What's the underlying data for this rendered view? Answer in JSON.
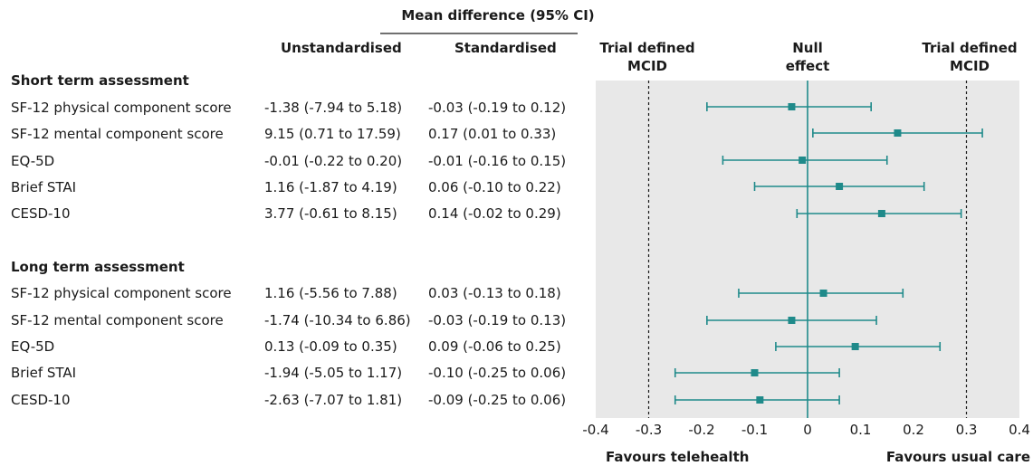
{
  "header": {
    "group_title": "Mean difference (95% CI)",
    "col_unstd": "Unstandardised",
    "col_std": "Standardised",
    "left_mcid_line1": "Trial defined",
    "left_mcid_line2": "MCID",
    "null_line1": "Null",
    "null_line2": "effect",
    "right_mcid_line1": "Trial defined",
    "right_mcid_line2": "MCID"
  },
  "sections": {
    "short": {
      "title": "Short term assessment",
      "rows": [
        {
          "label": "SF-12 physical component score",
          "unstd": "-1.38 (-7.94 to 5.18)",
          "std": "-0.03 (-0.19 to 0.12)"
        },
        {
          "label": "SF-12 mental component score",
          "unstd": "9.15 (0.71 to 17.59)",
          "std": "0.17 (0.01 to 0.33)"
        },
        {
          "label": "EQ-5D",
          "unstd": "-0.01 (-0.22 to 0.20)",
          "std": "-0.01 (-0.16 to 0.15)"
        },
        {
          "label": "Brief STAI",
          "unstd": "1.16 (-1.87 to 4.19)",
          "std": "0.06 (-0.10 to 0.22)"
        },
        {
          "label": "CESD-10",
          "unstd": "3.77 (-0.61 to 8.15)",
          "std": "0.14 (-0.02 to 0.29)"
        }
      ]
    },
    "long": {
      "title": "Long term assessment",
      "rows": [
        {
          "label": "SF-12 physical component score",
          "unstd": "1.16 (-5.56 to 7.88)",
          "std": "0.03 (-0.13 to 0.18)"
        },
        {
          "label": "SF-12 mental component score",
          "unstd": "-1.74 (-10.34 to 6.86)",
          "std": "-0.03 (-0.19 to 0.13)"
        },
        {
          "label": "EQ-5D",
          "unstd": "0.13 (-0.09 to 0.35)",
          "std": "0.09 (-0.06 to 0.25)"
        },
        {
          "label": "Brief STAI",
          "unstd": "-1.94 (-5.05 to 1.17)",
          "std": "-0.10 (-0.25 to 0.06)"
        },
        {
          "label": "CESD-10",
          "unstd": "-2.63 (-7.07 to 1.81)",
          "std": "-0.09 (-0.25 to 0.06)"
        }
      ]
    }
  },
  "footer": {
    "favours_left": "Favours telehealth",
    "favours_right": "Favours usual care"
  },
  "colors": {
    "marker": "#1f8a8a",
    "null_line": "#1f8a8a",
    "panel_bg": "#e8e8e8"
  },
  "chart_data": {
    "type": "forest",
    "xlim": [
      -0.4,
      0.4
    ],
    "xticks": [
      -0.4,
      -0.3,
      -0.2,
      -0.1,
      0,
      0.1,
      0.2,
      0.3,
      0.4
    ],
    "tick_labels": [
      "-0.4",
      "-0.3",
      "-0.2",
      "-0.1",
      "0",
      "0.1",
      "0.2",
      "0.3",
      "0.4"
    ],
    "null_effect": 0,
    "mcid": [
      -0.3,
      0.3
    ],
    "series": [
      {
        "group": "Short term assessment",
        "label": "SF-12 physical component score",
        "est": -0.03,
        "lo": -0.19,
        "hi": 0.12
      },
      {
        "group": "Short term assessment",
        "label": "SF-12 mental component score",
        "est": 0.17,
        "lo": 0.01,
        "hi": 0.33
      },
      {
        "group": "Short term assessment",
        "label": "EQ-5D",
        "est": -0.01,
        "lo": -0.16,
        "hi": 0.15
      },
      {
        "group": "Short term assessment",
        "label": "Brief STAI",
        "est": 0.06,
        "lo": -0.1,
        "hi": 0.22
      },
      {
        "group": "Short term assessment",
        "label": "CESD-10",
        "est": 0.14,
        "lo": -0.02,
        "hi": 0.29
      },
      {
        "group": "Long term assessment",
        "label": "SF-12 physical component score",
        "est": 0.03,
        "lo": -0.13,
        "hi": 0.18
      },
      {
        "group": "Long term assessment",
        "label": "SF-12 mental component score",
        "est": -0.03,
        "lo": -0.19,
        "hi": 0.13
      },
      {
        "group": "Long term assessment",
        "label": "EQ-5D",
        "est": 0.09,
        "lo": -0.06,
        "hi": 0.25
      },
      {
        "group": "Long term assessment",
        "label": "Brief STAI",
        "est": -0.1,
        "lo": -0.25,
        "hi": 0.06
      },
      {
        "group": "Long term assessment",
        "label": "CESD-10",
        "est": -0.09,
        "lo": -0.25,
        "hi": 0.06
      }
    ]
  }
}
